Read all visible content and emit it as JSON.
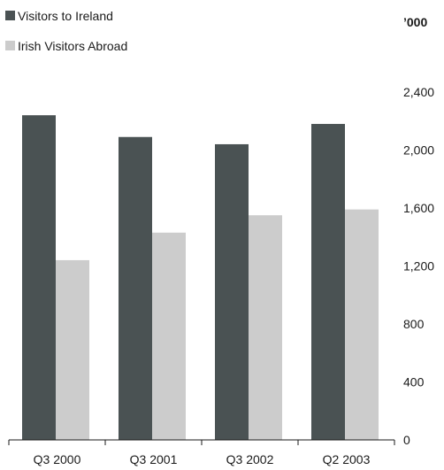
{
  "chart_data": {
    "type": "bar",
    "unit_label": "’000",
    "categories": [
      "Q3 2000",
      "Q3 2001",
      "Q3 2002",
      "Q2 2003"
    ],
    "series": [
      {
        "name": "Visitors to Ireland",
        "color": "#4a5253",
        "values": [
          2240,
          2090,
          2040,
          2180
        ]
      },
      {
        "name": "Irish Visitors Abroad",
        "color": "#cccccc",
        "values": [
          1240,
          1430,
          1550,
          1590
        ]
      }
    ],
    "y_ticks": [
      "0",
      "400",
      "800",
      "1,200",
      "1,600",
      "2,000",
      "2,400"
    ],
    "ylim": [
      0,
      2400
    ],
    "y_axis_side": "right",
    "grid": false,
    "legend_position": "top-left"
  }
}
